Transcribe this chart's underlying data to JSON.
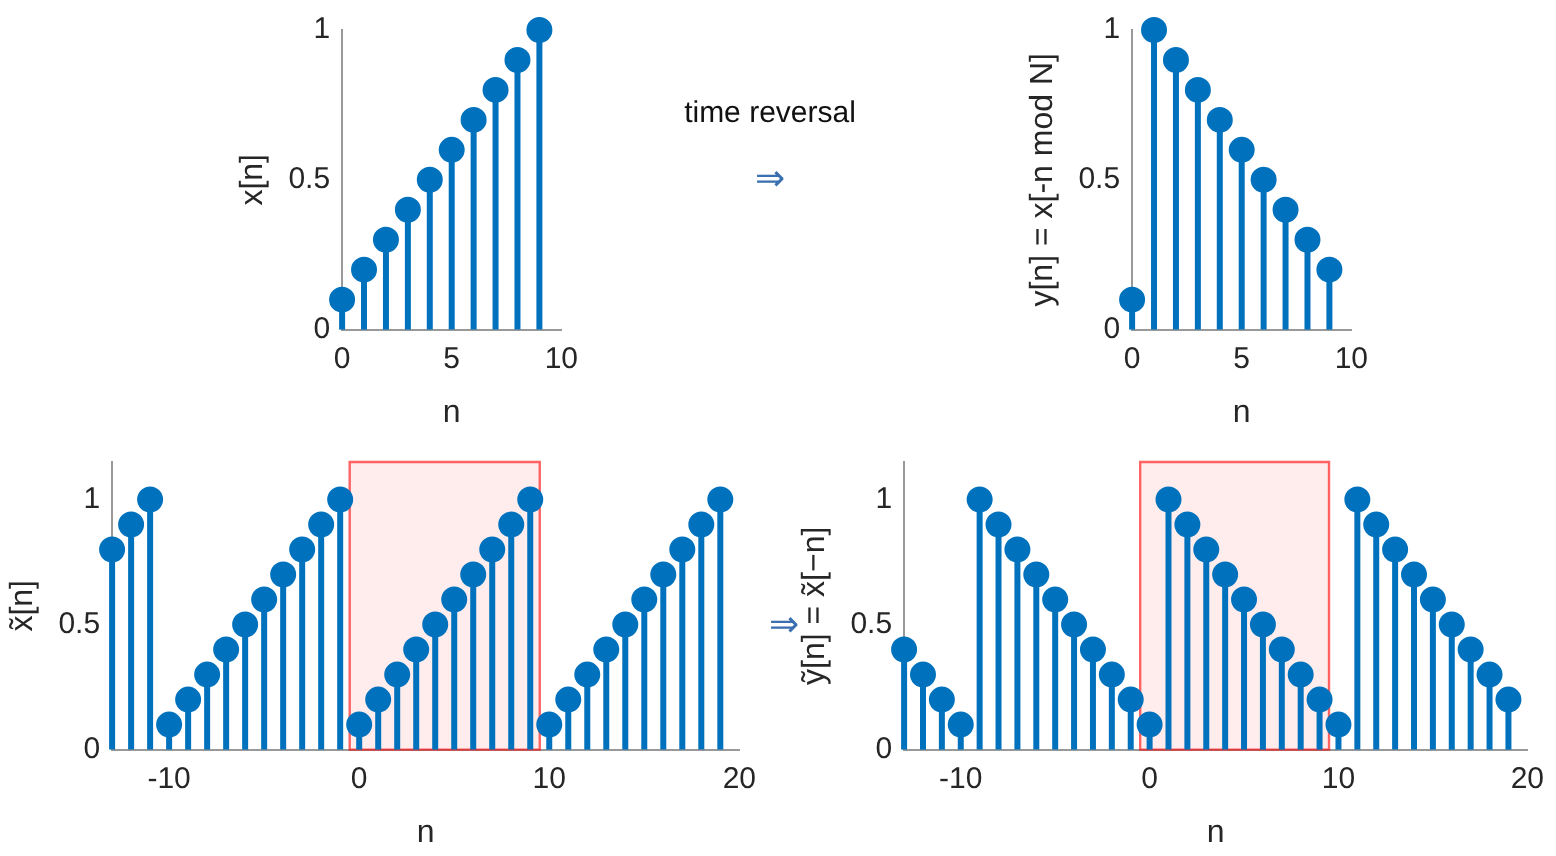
{
  "chart_data": [
    {
      "type": "lollipop",
      "xlabel": "n",
      "ylabel": "x[n]",
      "x": [
        0,
        1,
        2,
        3,
        4,
        5,
        6,
        7,
        8,
        9
      ],
      "values": [
        0.1,
        0.2,
        0.3,
        0.4,
        0.5,
        0.6,
        0.7,
        0.8,
        0.9,
        1
      ],
      "color": "#0072bd",
      "marker": "circle",
      "xlim": [
        0,
        10
      ],
      "xticks": [
        0,
        5,
        10
      ],
      "ylim": [
        0,
        1
      ],
      "yticks": [
        0,
        0.5,
        1
      ],
      "annotations": [
        "time reversal",
        "⇒"
      ]
    },
    {
      "type": "lollipop",
      "xlabel": "n",
      "ylabel": "y[n] = x[-n mod N]",
      "x": [
        0,
        1,
        2,
        3,
        4,
        5,
        6,
        7,
        8,
        9
      ],
      "values": [
        0.1,
        1,
        0.9,
        0.8,
        0.7,
        0.6,
        0.5,
        0.4,
        0.3,
        0.2
      ],
      "color": "#0072bd",
      "marker": "circle",
      "xlim": [
        0,
        10
      ],
      "xticks": [
        0,
        5,
        10
      ],
      "ylim": [
        0,
        1
      ],
      "yticks": [
        0,
        0.5,
        1
      ]
    },
    {
      "type": "lollipop",
      "xlabel": "n",
      "ylabel": "x̃[n]",
      "x": [
        -13,
        -12,
        -11,
        -10,
        -9,
        -8,
        -7,
        -6,
        -5,
        -4,
        -3,
        -2,
        -1,
        0,
        1,
        2,
        3,
        4,
        5,
        6,
        7,
        8,
        9,
        10,
        11,
        12,
        13,
        14,
        15,
        16,
        17,
        18,
        19
      ],
      "values": [
        0.8,
        0.9,
        1,
        0.1,
        0.2,
        0.3,
        0.4,
        0.5,
        0.6,
        0.7,
        0.8,
        0.9,
        1,
        0.1,
        0.2,
        0.3,
        0.4,
        0.5,
        0.6,
        0.7,
        0.8,
        0.9,
        1,
        0.1,
        0.2,
        0.3,
        0.4,
        0.5,
        0.6,
        0.7,
        0.8,
        0.9,
        1
      ],
      "color": "#0072bd",
      "marker": "circle",
      "xlim": [
        -13,
        20
      ],
      "xticks": [
        -10,
        0,
        10,
        20
      ],
      "ylim": [
        0,
        1.15
      ],
      "yticks": [
        0,
        0.5,
        1
      ],
      "bands": [
        {
          "axis": "x",
          "from": -0.5,
          "to": 9.5,
          "color": "#ff0000"
        }
      ],
      "annotations": [
        "⇒"
      ]
    },
    {
      "type": "lollipop",
      "xlabel": "n",
      "ylabel": "ỹ[n] = x̃[−n]",
      "x": [
        -13,
        -12,
        -11,
        -10,
        -9,
        -8,
        -7,
        -6,
        -5,
        -4,
        -3,
        -2,
        -1,
        0,
        1,
        2,
        3,
        4,
        5,
        6,
        7,
        8,
        9,
        10,
        11,
        12,
        13,
        14,
        15,
        16,
        17,
        18,
        19
      ],
      "values": [
        0.4,
        0.3,
        0.2,
        0.1,
        1,
        0.9,
        0.8,
        0.7,
        0.6,
        0.5,
        0.4,
        0.3,
        0.2,
        0.1,
        1,
        0.9,
        0.8,
        0.7,
        0.6,
        0.5,
        0.4,
        0.3,
        0.2,
        0.1,
        1,
        0.9,
        0.8,
        0.7,
        0.6,
        0.5,
        0.4,
        0.3,
        0.2
      ],
      "color": "#0072bd",
      "marker": "circle",
      "xlim": [
        -13,
        20
      ],
      "xticks": [
        -10,
        0,
        10,
        20
      ],
      "ylim": [
        0,
        1.15
      ],
      "yticks": [
        0,
        0.5,
        1
      ],
      "bands": [
        {
          "axis": "x",
          "from": -0.5,
          "to": 9.5,
          "color": "#ff0000"
        }
      ]
    }
  ]
}
